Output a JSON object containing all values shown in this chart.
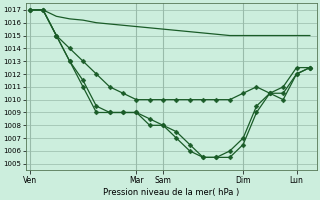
{
  "title": "Pression niveau de la mer( hPa )",
  "bg_color": "#cceedd",
  "grid_color": "#99bbaa",
  "line_color": "#1a5c28",
  "ylim": [
    1004.5,
    1017.5
  ],
  "yticks": [
    1005,
    1006,
    1007,
    1008,
    1009,
    1010,
    1011,
    1012,
    1013,
    1014,
    1015,
    1016,
    1017
  ],
  "day_labels": [
    "Ven",
    "Mar",
    "Sam",
    "Dim",
    "Lun"
  ],
  "day_x": [
    0,
    8,
    10,
    16,
    20
  ],
  "xlim": [
    -0.3,
    21.5
  ],
  "line_upper_x": [
    0,
    1,
    2,
    3,
    4,
    5,
    6,
    7,
    8,
    9,
    10,
    11,
    12,
    13,
    14,
    15,
    16,
    17,
    18,
    19,
    20,
    21
  ],
  "line_upper_y": [
    1017,
    1017,
    1016.5,
    1016.3,
    1016.2,
    1016.0,
    1015.9,
    1015.8,
    1015.7,
    1015.6,
    1015.5,
    1015.4,
    1015.3,
    1015.2,
    1015.1,
    1015.0,
    1015.0,
    1015.0,
    1015.0,
    1015.0,
    1015.0,
    1015.0
  ],
  "line_mid_x": [
    0,
    1,
    2,
    3,
    4,
    5,
    6,
    7,
    8,
    9,
    10,
    11,
    12,
    13,
    14,
    15,
    16,
    17,
    18,
    19,
    20,
    21
  ],
  "line_mid_y": [
    1017,
    1017,
    1015,
    1014,
    1013,
    1012,
    1011,
    1010.5,
    1010,
    1010,
    1010,
    1010,
    1010,
    1010,
    1010,
    1010,
    1010.5,
    1011,
    1010.5,
    1010,
    1012,
    1012.5
  ],
  "line_low_x": [
    0,
    1,
    2,
    3,
    4,
    5,
    6,
    7,
    8,
    9,
    10,
    11,
    12,
    13,
    14,
    15,
    16,
    17,
    18,
    19,
    20,
    21
  ],
  "line_low_y": [
    1017,
    1017,
    1015,
    1013,
    1011.5,
    1009.5,
    1009,
    1009,
    1009,
    1008.5,
    1008,
    1007.5,
    1006.5,
    1005.5,
    1005.5,
    1006,
    1007,
    1009.5,
    1010.5,
    1010.5,
    1012,
    1012.5
  ],
  "line_deep_x": [
    0,
    1,
    2,
    3,
    4,
    5,
    6,
    7,
    8,
    9,
    10,
    11,
    12,
    13,
    14,
    15,
    16,
    17,
    18,
    19,
    20,
    21
  ],
  "line_deep_y": [
    1017,
    1017,
    1015,
    1013,
    1011,
    1009,
    1009,
    1009,
    1009,
    1008,
    1008,
    1007,
    1006,
    1005.5,
    1005.5,
    1005.5,
    1006.5,
    1009,
    1010.5,
    1011,
    1012.5,
    1012.5
  ]
}
